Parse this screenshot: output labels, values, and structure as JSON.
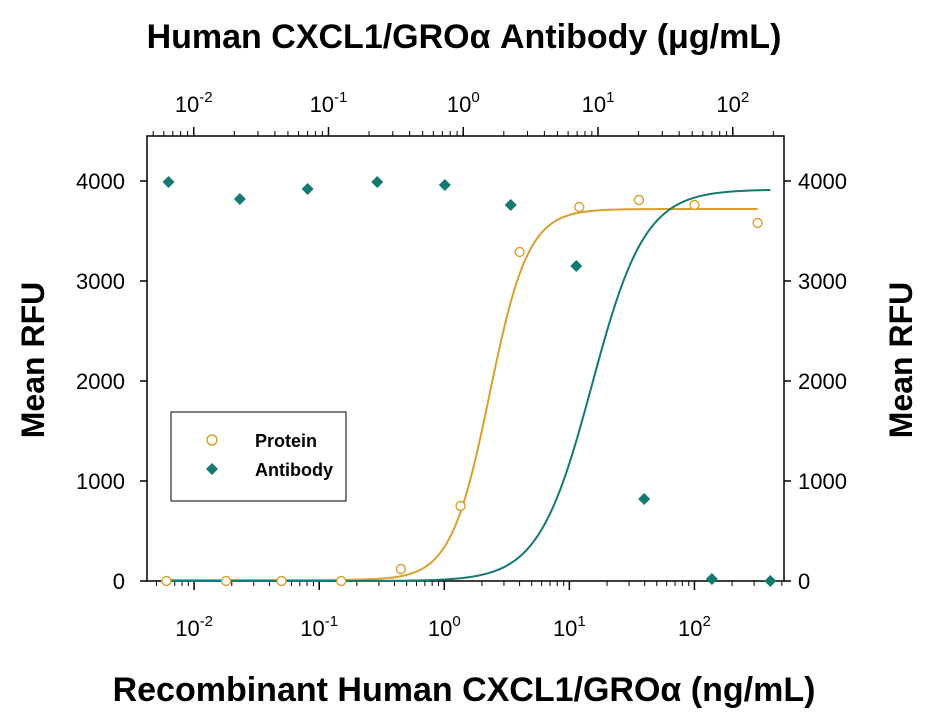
{
  "chart_data": {
    "type": "scatter",
    "top_axis_title": "Human CXCL1/GROα Antibody (μg/mL)",
    "bottom_axis_title": "Recombinant Human CXCL1/GROα (ng/mL)",
    "left_axis_title": "Mean RFU",
    "right_axis_title": "Mean RFU",
    "x_scale": "log",
    "y_ticks": [
      "0",
      "1000",
      "2000",
      "3000",
      "4000"
    ],
    "y_tick_values": [
      0,
      1000,
      2000,
      3000,
      4000
    ],
    "bottom_ticks": [
      {
        "base": "10",
        "exp": "-2",
        "value": 0.01
      },
      {
        "base": "10",
        "exp": "-1",
        "value": 0.1
      },
      {
        "base": "10",
        "exp": "0",
        "value": 1
      },
      {
        "base": "10",
        "exp": "1",
        "value": 10
      },
      {
        "base": "10",
        "exp": "2",
        "value": 100
      }
    ],
    "top_ticks": [
      {
        "base": "10",
        "exp": "-2",
        "value": 0.01
      },
      {
        "base": "10",
        "exp": "-1",
        "value": 0.1
      },
      {
        "base": "10",
        "exp": "0",
        "value": 1
      },
      {
        "base": "10",
        "exp": "1",
        "value": 10
      },
      {
        "base": "10",
        "exp": "2",
        "value": 100
      }
    ],
    "bottom_range": [
      0.0042,
      520
    ],
    "top_range": [
      0.0045,
      240
    ],
    "ylim": [
      0,
      4450
    ],
    "legend": {
      "position": "lower-left",
      "entries": [
        "Protein",
        "Antibody"
      ]
    },
    "series": [
      {
        "name": "Protein",
        "axis": "bottom",
        "marker": "open-circle",
        "color": "#d9a030",
        "x": [
          0.006,
          0.018,
          0.05,
          0.15,
          0.45,
          1.35,
          4.0,
          12.0,
          36.0,
          100.0,
          320.0
        ],
        "y": [
          0,
          0,
          0,
          0,
          120,
          750,
          3290,
          3740,
          3810,
          3760,
          3580
        ],
        "fit": {
          "bottom": 10,
          "top": 3720,
          "ec50": 2.3,
          "hill": 2.8
        }
      },
      {
        "name": "Antibody",
        "axis": "top",
        "marker": "filled-diamond",
        "color": "#137a72",
        "x": [
          0.0065,
          0.022,
          0.07,
          0.23,
          0.73,
          2.25,
          6.9,
          22.0,
          70.0,
          190.0
        ],
        "y": [
          3990,
          3820,
          3920,
          3990,
          3960,
          3760,
          3150,
          820,
          20,
          0
        ],
        "fit": {
          "bottom": 0,
          "top": 3915,
          "ec50": 9.0,
          "hill": 2.2
        }
      }
    ]
  }
}
